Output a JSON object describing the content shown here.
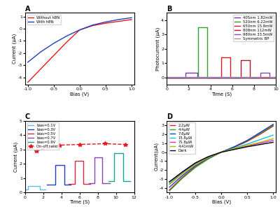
{
  "chart_data": [
    {
      "type": "line",
      "title": "A",
      "x_label": "Bias (V)",
      "y_label": "Current (μA)",
      "xlim": [
        -1.05,
        1.05
      ],
      "ylim": [
        -4.6,
        1.3
      ],
      "xticks": [
        -1.0,
        -0.5,
        0.0,
        0.5,
        1.0
      ],
      "yticks": [
        -4,
        -3,
        -2,
        -1,
        0,
        1
      ],
      "legend": "upper left",
      "series": [
        {
          "name": "Without hBN",
          "color": "#e41a1c",
          "line_style": "solid",
          "x": [
            -1,
            -0.75,
            -0.5,
            -0.25,
            0,
            0.25,
            0.5,
            0.75,
            1
          ],
          "values": [
            -4.4,
            -3.3,
            -2.2,
            -1.1,
            -0.1,
            0.25,
            0.45,
            0.6,
            0.75
          ]
        },
        {
          "name": "With hBN",
          "color": "#1f3fbf",
          "line_style": "solid",
          "x": [
            -1,
            -0.75,
            -0.5,
            -0.25,
            0,
            0.25,
            0.5,
            0.75,
            1
          ],
          "values": [
            -2.75,
            -1.9,
            -1.2,
            -0.6,
            -0.1,
            0.3,
            0.55,
            0.75,
            0.9
          ]
        }
      ]
    },
    {
      "type": "line",
      "title": "B",
      "x_label": "Time (S)",
      "y_label": "Photocurrent (μA)",
      "xlim": [
        0,
        10
      ],
      "ylim": [
        -0.5,
        4.5
      ],
      "xticks": [
        0,
        2,
        4,
        6,
        8,
        10
      ],
      "yticks": [
        0,
        1,
        2,
        3,
        4
      ],
      "legend": "upper right",
      "series": [
        {
          "name": "405nm 1.82mW",
          "color": "#7b2fbf",
          "line_style": "solid",
          "x": [
            0,
            1.7,
            1.7,
            2.8,
            2.8,
            10
          ],
          "values": [
            0,
            0,
            0.35,
            0.35,
            0,
            0
          ]
        },
        {
          "name": "520nm 6.22mW",
          "color": "#2ca02c",
          "line_style": "solid",
          "x": [
            0,
            2.9,
            2.9,
            3.7,
            3.7,
            10
          ],
          "values": [
            0,
            0,
            3.5,
            3.5,
            0,
            0
          ]
        },
        {
          "name": "650nm 15.8mW",
          "color": "#e41a1c",
          "line_style": "solid",
          "x": [
            0,
            5.0,
            5.0,
            5.8,
            5.8,
            10
          ],
          "values": [
            0,
            0,
            1.4,
            1.4,
            0,
            0
          ]
        },
        {
          "name": "808nm 112mW",
          "color": "#b2182b",
          "line_style": "solid",
          "x": [
            0,
            6.8,
            6.8,
            7.6,
            7.6,
            10
          ],
          "values": [
            0,
            0,
            1.2,
            1.2,
            0,
            0
          ]
        },
        {
          "name": "980nm 33.5mW",
          "color": "#8e44ad",
          "line_style": "solid",
          "x": [
            0,
            8.6,
            8.6,
            9.4,
            9.4,
            10
          ],
          "values": [
            0,
            0,
            0.35,
            0.35,
            0,
            0
          ]
        },
        {
          "name": "Symmetric BP",
          "color": "#999999",
          "line_style": "solid",
          "x": [
            0,
            10
          ],
          "values": [
            0.02,
            0.02
          ]
        }
      ]
    },
    {
      "type": "line",
      "title": "C",
      "x_label": "Time (S)",
      "y_label": "Current (μA)",
      "xlim": [
        0,
        12
      ],
      "ylim": [
        0,
        5
      ],
      "xticks": [
        0,
        2,
        4,
        6,
        8,
        10,
        12
      ],
      "yticks": [
        0,
        1,
        2,
        3,
        4,
        5
      ],
      "legend": "upper left",
      "series": [
        {
          "name": "bias=0.1V",
          "color": "#5bc0eb",
          "line_style": "solid",
          "x": [
            0,
            0.3,
            0.3,
            1.6,
            1.6,
            2.2
          ],
          "values": [
            0.2,
            0.2,
            0.45,
            0.45,
            0.2,
            0.2
          ]
        },
        {
          "name": "bias=0.3V",
          "color": "#1f3fbf",
          "line_style": "solid",
          "x": [
            2.4,
            3.3,
            3.3,
            4.3,
            4.3,
            5.0
          ],
          "values": [
            0.55,
            0.55,
            1.9,
            1.9,
            0.55,
            0.55
          ]
        },
        {
          "name": "bias=0.5V",
          "color": "#d7263d",
          "line_style": "solid",
          "x": [
            4.8,
            5.5,
            5.5,
            6.4,
            6.4,
            7.2
          ],
          "values": [
            0.6,
            0.6,
            2.2,
            2.2,
            0.6,
            0.6
          ]
        },
        {
          "name": "bias=0.7V",
          "color": "#8e44ad",
          "line_style": "solid",
          "x": [
            7.0,
            7.6,
            7.6,
            8.5,
            8.5,
            9.3
          ],
          "values": [
            0.65,
            0.65,
            2.45,
            2.45,
            0.65,
            0.65
          ]
        },
        {
          "name": "bias=0.9V",
          "color": "#16a596",
          "line_style": "solid",
          "x": [
            9.2,
            9.8,
            9.8,
            10.8,
            10.8,
            11.6
          ],
          "values": [
            0.8,
            0.8,
            2.75,
            2.75,
            0.8,
            0.8
          ]
        },
        {
          "name": "On-off ratio",
          "color": "#e41a1c",
          "line_style": "dashed",
          "marker": "star",
          "x": [
            1.2,
            3.8,
            6.0,
            8.8,
            11.0
          ],
          "values": [
            2.9,
            3.3,
            3.35,
            3.4,
            3.35
          ]
        }
      ]
    },
    {
      "type": "line",
      "title": "D",
      "x_label": "Bias (V)",
      "y_label": "Current(μA)",
      "xlim": [
        -1.05,
        1.05
      ],
      "ylim": [
        -4.5,
        3.5
      ],
      "xticks": [
        -1.0,
        -0.5,
        0.0,
        0.5,
        1.0
      ],
      "yticks": [
        -4,
        -3,
        -2,
        -1,
        0,
        1,
        2,
        3
      ],
      "legend": "upper left",
      "series": [
        {
          "name": "2.2μW",
          "color": "#e41a1c",
          "line_style": "solid",
          "x": [
            -1,
            -0.75,
            -0.5,
            -0.25,
            0,
            0.25,
            0.5,
            0.75,
            1
          ],
          "values": [
            -4.2,
            -2.8,
            -1.6,
            -0.7,
            0,
            0.55,
            1.2,
            2.0,
            2.9
          ]
        },
        {
          "name": "4.4μW",
          "color": "#2ca02c",
          "line_style": "solid",
          "x": [
            -1,
            -0.75,
            -0.5,
            -0.25,
            0,
            0.25,
            0.5,
            0.75,
            1
          ],
          "values": [
            -4.3,
            -2.9,
            -1.7,
            -0.75,
            0,
            0.6,
            1.3,
            2.1,
            3.0
          ]
        },
        {
          "name": "7.8μW",
          "color": "#1f3fbf",
          "line_style": "solid",
          "x": [
            -1,
            -0.75,
            -0.5,
            -0.25,
            0,
            0.25,
            0.5,
            0.75,
            1
          ],
          "values": [
            -3.9,
            -2.6,
            -1.5,
            -0.65,
            0,
            0.6,
            1.3,
            2.2,
            3.1
          ]
        },
        {
          "name": "15.8μW",
          "color": "#17becf",
          "line_style": "solid",
          "x": [
            -1,
            -0.75,
            -0.5,
            -0.25,
            0,
            0.25,
            0.5,
            0.75,
            1
          ],
          "values": [
            -3.5,
            -2.3,
            -1.3,
            -0.55,
            0,
            0.45,
            0.9,
            1.4,
            1.9
          ]
        },
        {
          "name": "71.8μW",
          "color": "#d62fd6",
          "line_style": "solid",
          "x": [
            -1,
            -0.75,
            -0.5,
            -0.25,
            0,
            0.25,
            0.5,
            0.75,
            1
          ],
          "values": [
            -3.3,
            -2.2,
            -1.2,
            -0.5,
            0,
            0.35,
            0.7,
            1.0,
            1.3
          ]
        },
        {
          "name": "4.41mW",
          "color": "#b5b000",
          "line_style": "solid",
          "x": [
            -1,
            -0.75,
            -0.5,
            -0.25,
            0,
            0.25,
            0.5,
            0.75,
            1
          ],
          "values": [
            -3.6,
            -2.4,
            -1.4,
            -0.6,
            0,
            0.4,
            0.75,
            1.1,
            1.5
          ]
        },
        {
          "name": "Dark",
          "color": "#000000",
          "line_style": "solid",
          "x": [
            -1,
            -0.75,
            -0.5,
            -0.25,
            0,
            0.25,
            0.5,
            0.75,
            1
          ],
          "values": [
            -3.3,
            -2.2,
            -1.2,
            -0.5,
            0,
            0.3,
            0.6,
            0.85,
            1.1
          ]
        }
      ]
    }
  ]
}
